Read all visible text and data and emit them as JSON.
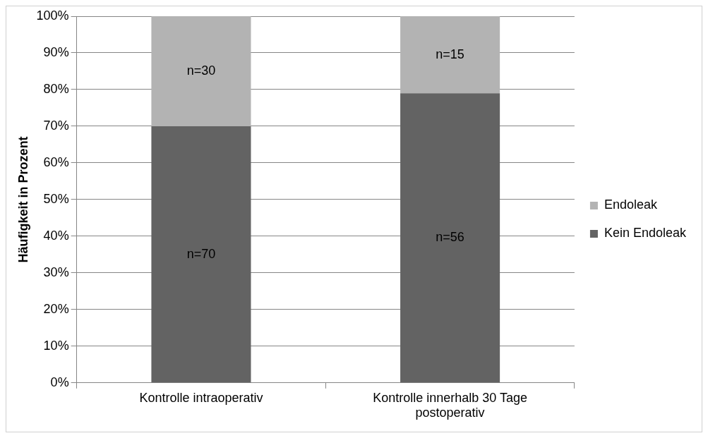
{
  "chart_data": {
    "type": "bar",
    "stacked": true,
    "ylabel": "Häufigkeit in Prozent",
    "categories": [
      "Kontrolle intraoperativ",
      "Kontrolle innerhalb 30 Tage postoperativ"
    ],
    "series": [
      {
        "name": "Kein Endoleak",
        "color": "#636363",
        "values": [
          70,
          79
        ]
      },
      {
        "name": "Endoleak",
        "color": "#b3b3b3",
        "values": [
          30,
          21
        ]
      }
    ],
    "annotations": [
      "n=70",
      "n=56",
      "n=30",
      "n=15"
    ],
    "ylim": [
      0,
      100
    ],
    "yticks": [
      {
        "value": 0,
        "label": "0%"
      },
      {
        "value": 10,
        "label": "10%"
      },
      {
        "value": 20,
        "label": "20%"
      },
      {
        "value": 30,
        "label": "30%"
      },
      {
        "value": 40,
        "label": "40%"
      },
      {
        "value": 50,
        "label": "50%"
      },
      {
        "value": 60,
        "label": "60%"
      },
      {
        "value": 70,
        "label": "70%"
      },
      {
        "value": 80,
        "label": "80%"
      },
      {
        "value": 90,
        "label": "90%"
      },
      {
        "value": 100,
        "label": "100%"
      }
    ],
    "grid": "y",
    "legend": "right"
  }
}
